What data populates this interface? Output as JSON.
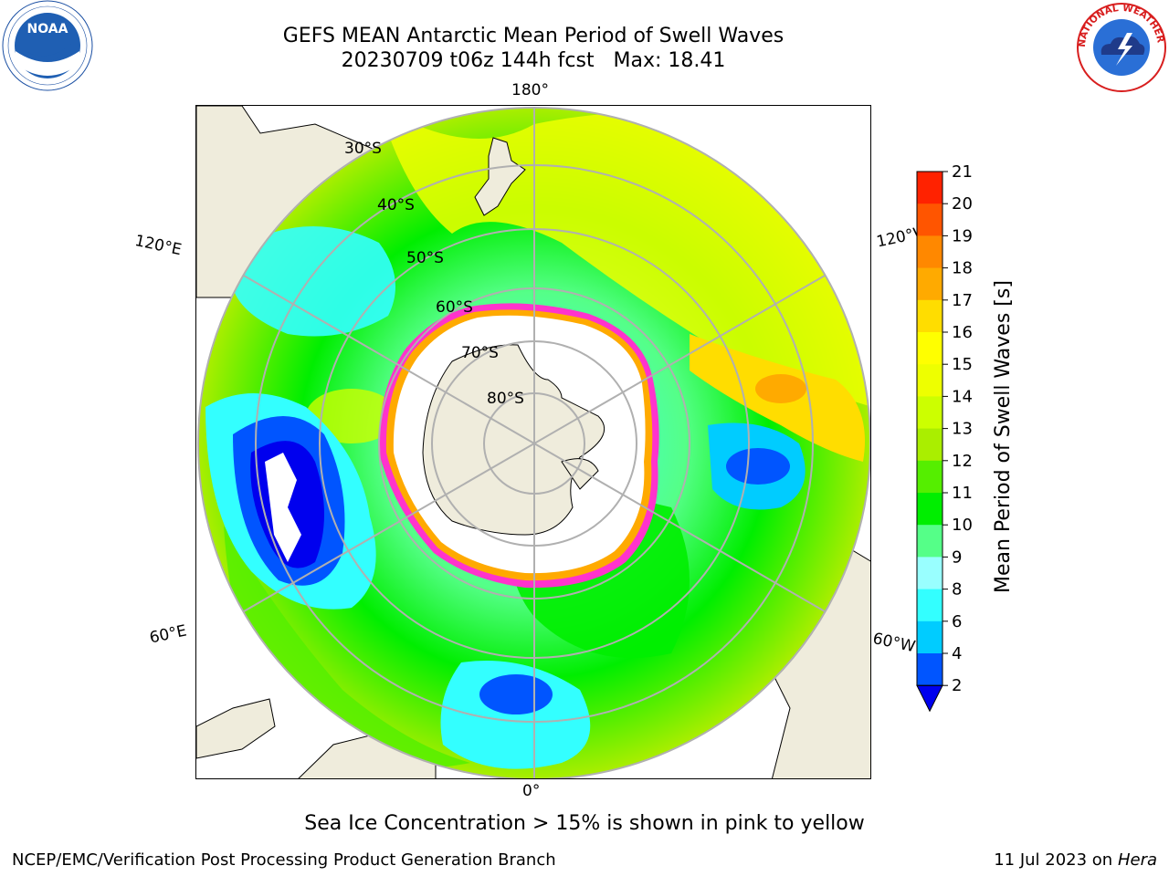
{
  "title": {
    "line1": "GEFS MEAN Antarctic Mean Period of Swell Waves",
    "line2": "20230709 t06z 144h fcst   Max: 18.41"
  },
  "map": {
    "projection": "south-polar-stereographic",
    "longitude_labels": {
      "top": "180°",
      "bottom": "0°",
      "left_upper": "120°E",
      "right_upper": "120°W",
      "left_lower": "60°E",
      "right_lower": "60°W"
    },
    "latitude_labels": [
      "30°S",
      "40°S",
      "50°S",
      "60°S",
      "70°S",
      "80°S"
    ],
    "colors": {
      "land": "#efecdc",
      "sea_ice": "#ffffff",
      "ice_edge": [
        "#ff33cc",
        "#ffaa00"
      ],
      "graticule": "#b0b0b0"
    }
  },
  "colorbar": {
    "label": "Mean Period of Swell Waves [s]",
    "ticks": [
      "2",
      "4",
      "6",
      "8",
      "9",
      "10",
      "11",
      "12",
      "13",
      "14",
      "15",
      "16",
      "17",
      "18",
      "19",
      "20",
      "21"
    ],
    "colors": [
      "#0055ff",
      "#00ccff",
      "#33ffff",
      "#99ffff",
      "#55ff88",
      "#00ee00",
      "#55ee00",
      "#aaee00",
      "#ccff00",
      "#eeff00",
      "#ffff00",
      "#ffdd00",
      "#ffaa00",
      "#ff8800",
      "#ff5500",
      "#ff2200"
    ],
    "under_color": "#0000ee"
  },
  "subtitle": "Sea Ice Concentration > 15% is shown in pink to yellow",
  "footer": {
    "left": "NCEP/EMC/Verification Post Processing Product Generation Branch",
    "right_date": "11 Jul 2023 on",
    "right_host": "Hera"
  },
  "logos": {
    "noaa": "NOAA",
    "nws": "NATIONAL WEATHER SERVICE"
  }
}
